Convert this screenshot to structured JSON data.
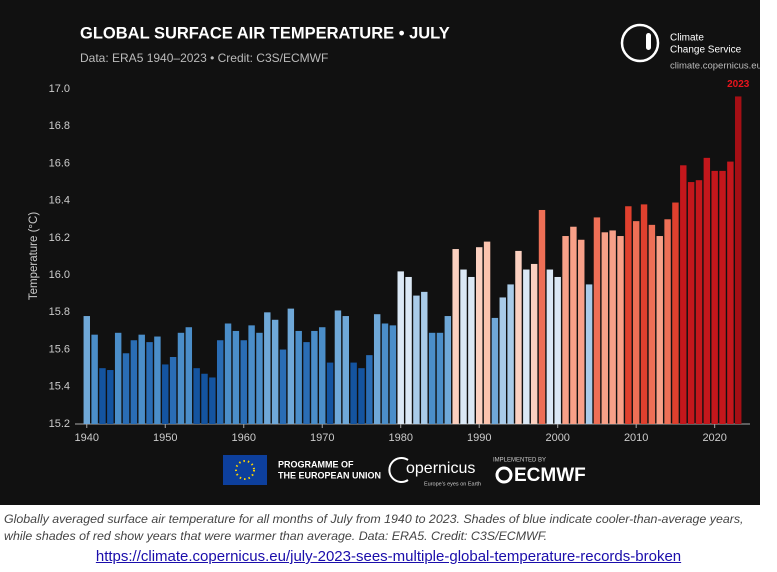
{
  "chart_data": {
    "type": "bar",
    "title": "GLOBAL SURFACE AIR TEMPERATURE • JULY",
    "subtitle": "Data: ERA5 1940–2023 • Credit: C3S/ECMWF",
    "y_label": "Temperature (°C)",
    "annotation": {
      "text": "2023",
      "x": 2023,
      "color": "#e8141c"
    },
    "x": [
      1940,
      1941,
      1942,
      1943,
      1944,
      1945,
      1946,
      1947,
      1948,
      1949,
      1950,
      1951,
      1952,
      1953,
      1954,
      1955,
      1956,
      1957,
      1958,
      1959,
      1960,
      1961,
      1962,
      1963,
      1964,
      1965,
      1966,
      1967,
      1968,
      1969,
      1970,
      1971,
      1972,
      1973,
      1974,
      1975,
      1976,
      1977,
      1978,
      1979,
      1980,
      1981,
      1982,
      1983,
      1984,
      1985,
      1986,
      1987,
      1988,
      1989,
      1990,
      1991,
      1992,
      1993,
      1994,
      1995,
      1996,
      1997,
      1998,
      1999,
      2000,
      2001,
      2002,
      2003,
      2004,
      2005,
      2006,
      2007,
      2008,
      2009,
      2010,
      2011,
      2012,
      2013,
      2014,
      2015,
      2016,
      2017,
      2018,
      2019,
      2020,
      2021,
      2022,
      2023
    ],
    "values": [
      15.78,
      15.68,
      15.5,
      15.49,
      15.69,
      15.58,
      15.65,
      15.68,
      15.64,
      15.67,
      15.52,
      15.56,
      15.69,
      15.72,
      15.5,
      15.47,
      15.45,
      15.65,
      15.74,
      15.7,
      15.65,
      15.73,
      15.69,
      15.8,
      15.76,
      15.6,
      15.82,
      15.7,
      15.64,
      15.7,
      15.72,
      15.53,
      15.81,
      15.78,
      15.53,
      15.5,
      15.57,
      15.79,
      15.74,
      15.73,
      16.02,
      15.99,
      15.89,
      15.91,
      15.69,
      15.69,
      15.78,
      16.14,
      16.03,
      15.99,
      16.15,
      16.18,
      15.77,
      15.88,
      15.95,
      16.13,
      16.03,
      16.06,
      16.35,
      16.03,
      15.99,
      16.21,
      16.26,
      16.19,
      15.95,
      16.31,
      16.23,
      16.24,
      16.21,
      16.37,
      16.29,
      16.38,
      16.27,
      16.21,
      16.3,
      16.39,
      16.59,
      16.5,
      16.51,
      16.63,
      16.56,
      16.56,
      16.61,
      16.96
    ],
    "colors": [
      "#6fa8d8",
      "#4b8ec9",
      "#1454a0",
      "#1454a0",
      "#4b8ec9",
      "#2a6db5",
      "#2a6db5",
      "#4b8ec9",
      "#2a6db5",
      "#4b8ec9",
      "#1454a0",
      "#2a6db5",
      "#4b8ec9",
      "#4b8ec9",
      "#1454a0",
      "#1454a0",
      "#1454a0",
      "#2a6db5",
      "#4b8ec9",
      "#4b8ec9",
      "#2a6db5",
      "#4b8ec9",
      "#4b8ec9",
      "#6fa8d8",
      "#6fa8d8",
      "#2a6db5",
      "#6fa8d8",
      "#4b8ec9",
      "#2a6db5",
      "#4b8ec9",
      "#4b8ec9",
      "#1454a0",
      "#6fa8d8",
      "#6fa8d8",
      "#1454a0",
      "#1454a0",
      "#2a6db5",
      "#6fa8d8",
      "#4b8ec9",
      "#4b8ec9",
      "#dbe8f5",
      "#dbe8f5",
      "#a9cbe8",
      "#a9cbe8",
      "#4b8ec9",
      "#4b8ec9",
      "#6fa8d8",
      "#fbd0c0",
      "#dbe8f5",
      "#dbe8f5",
      "#fbd0c0",
      "#fbc3ae",
      "#6fa8d8",
      "#a9cbe8",
      "#a9cbe8",
      "#fbd0c0",
      "#dbe8f5",
      "#fbd0c0",
      "#ee6f56",
      "#dbe8f5",
      "#dbe8f5",
      "#f8a088",
      "#f8a088",
      "#f8a088",
      "#a9cbe8",
      "#ee6f56",
      "#f8a088",
      "#f8a088",
      "#f8a088",
      "#e0402e",
      "#ee6f56",
      "#e0402e",
      "#ee6f56",
      "#f8a088",
      "#ee6f56",
      "#e0402e",
      "#c4171c",
      "#c4171c",
      "#c4171c",
      "#c4171c",
      "#c4171c",
      "#c4171c",
      "#c4171c",
      "#a50f15"
    ],
    "xlim": [
      1938.5,
      2024.5
    ],
    "xticks": [
      1940,
      1950,
      1960,
      1970,
      1980,
      1990,
      2000,
      2010,
      2020
    ],
    "ylim": [
      15.2,
      17.0
    ],
    "yticks": [
      15.2,
      15.4,
      15.6,
      15.8,
      {
        "value": 16,
        "label": "16.0"
      },
      16.2,
      16.4,
      16.6,
      16.8,
      {
        "value": 17,
        "label": "17.0"
      }
    ],
    "grid": false
  },
  "logos": {
    "service": [
      "Climate",
      "Change Service"
    ],
    "site": "climate.copernicus.eu",
    "eu": [
      "PROGRAMME OF",
      "THE EUROPEAN UNION"
    ],
    "copernicus": "opernicus",
    "copernicus_tag": "Europe's eyes on Earth",
    "implemented": "IMPLEMENTED BY",
    "ecmwf": "ECMWF"
  },
  "caption": "Globally averaged surface air temperature for all months of July from 1940 to 2023. Shades of blue indicate cooler-than-average years, while shades of red show years that were warmer than average. Data: ERA5. Credit: C3S/ECMWF.",
  "link": "https://climate.copernicus.eu/july-2023-sees-multiple-global-temperature-records-broken"
}
